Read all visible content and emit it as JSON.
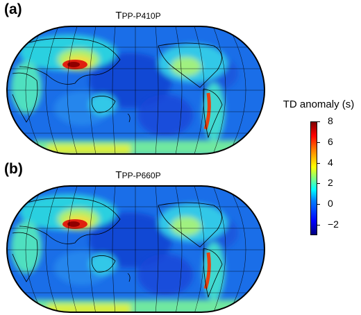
{
  "panels": [
    {
      "label": "(a)",
      "title_main": "T",
      "title_sub": "PP-P410P"
    },
    {
      "label": "(b)",
      "title_main": "T",
      "title_sub": "PP-P660P"
    }
  ],
  "colorbar": {
    "title": "TD anomaly (s)",
    "ticks": [
      "8",
      "6",
      "4",
      "2",
      "0",
      "−2"
    ],
    "range": [
      -3,
      8
    ],
    "colormap": "jet",
    "colors": [
      "#00007f",
      "#0000ff",
      "#00ffff",
      "#ffff00",
      "#ff0000",
      "#7f0000"
    ]
  },
  "map": {
    "projection": "Robinson",
    "center_longitude": 180,
    "graticule": true,
    "coastlines": true
  }
}
